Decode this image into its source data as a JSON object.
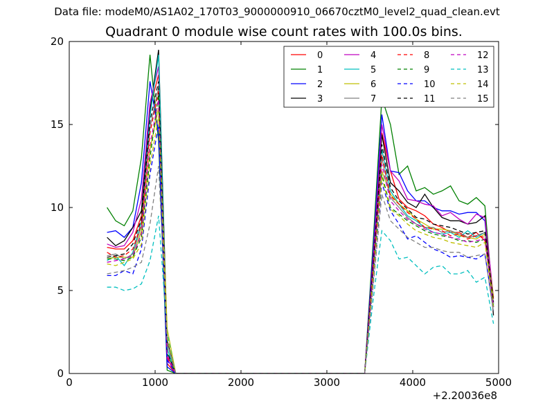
{
  "header": {
    "data_file_label": "Data file: modeM0/AS1A02_170T03_9000000910_06670cztM0_level2_quad_clean.evt"
  },
  "chart_data": {
    "type": "line",
    "title": "Quadrant 0 module wise count rates with 100.0s bins.",
    "xlabel": "",
    "ylabel": "",
    "x_offset_label": "+2.20036e8",
    "xlim": [
      0,
      5000
    ],
    "ylim": [
      0,
      20
    ],
    "xticks": [
      0,
      1000,
      2000,
      3000,
      4000,
      5000
    ],
    "yticks": [
      0,
      5,
      10,
      15,
      20
    ],
    "grid": false,
    "legend_location": "top-right",
    "legend_columns": 4,
    "x": [
      440,
      540,
      640,
      740,
      840,
      940,
      1040,
      1140,
      1240,
      1340,
      1440,
      1540,
      1640,
      1740,
      1840,
      1940,
      2040,
      2140,
      2240,
      2340,
      2440,
      2540,
      2640,
      2740,
      2840,
      2940,
      3040,
      3140,
      3240,
      3340,
      3440,
      3540,
      3640,
      3740,
      3840,
      3940,
      4040,
      4140,
      4240,
      4340,
      4440,
      4540,
      4640,
      4740,
      4840,
      4940
    ],
    "series": [
      {
        "name": "0",
        "color": "#ff0000",
        "dash": "solid",
        "values": [
          7.6,
          7.5,
          7.5,
          8.0,
          9.5,
          16.0,
          18.0,
          0.6,
          0,
          0,
          0,
          0,
          0,
          0,
          0,
          0,
          0,
          0,
          0,
          0,
          0,
          0,
          0,
          0,
          0,
          0,
          0,
          0,
          0,
          0,
          0,
          7.0,
          14.5,
          12.2,
          10.5,
          10.0,
          9.8,
          9.5,
          9.0,
          8.8,
          8.5,
          8.5,
          8.2,
          8.5,
          8.0,
          4.5
        ]
      },
      {
        "name": "1",
        "color": "#008000",
        "dash": "solid",
        "values": [
          10.0,
          9.2,
          8.9,
          9.8,
          13.0,
          19.2,
          14.0,
          0.2,
          0,
          0,
          0,
          0,
          0,
          0,
          0,
          0,
          0,
          0,
          0,
          0,
          0,
          0,
          0,
          0,
          0,
          0,
          0,
          0,
          0,
          0,
          0,
          8.0,
          16.6,
          15.0,
          12.0,
          12.5,
          11.0,
          11.2,
          10.8,
          11.0,
          11.3,
          10.4,
          10.2,
          10.6,
          10.1,
          4.0
        ]
      },
      {
        "name": "2",
        "color": "#0000ff",
        "dash": "solid",
        "values": [
          8.5,
          8.6,
          8.2,
          8.8,
          11.5,
          17.6,
          14.5,
          0.4,
          0,
          0,
          0,
          0,
          0,
          0,
          0,
          0,
          0,
          0,
          0,
          0,
          0,
          0,
          0,
          0,
          0,
          0,
          0,
          0,
          0,
          0,
          0,
          7.5,
          15.6,
          12.2,
          12.1,
          11.0,
          10.4,
          10.4,
          10.0,
          9.8,
          9.8,
          9.6,
          9.7,
          9.7,
          9.2,
          4.2
        ]
      },
      {
        "name": "3",
        "color": "#000000",
        "dash": "solid",
        "values": [
          8.2,
          7.7,
          8.0,
          8.8,
          9.8,
          15.8,
          19.5,
          2.0,
          0,
          0,
          0,
          0,
          0,
          0,
          0,
          0,
          0,
          0,
          0,
          0,
          0,
          0,
          0,
          0,
          0,
          0,
          0,
          0,
          0,
          0,
          0,
          7.0,
          14.4,
          11.5,
          11.0,
          10.3,
          10.0,
          10.8,
          10.0,
          9.4,
          9.2,
          9.2,
          9.0,
          9.1,
          9.5,
          3.5
        ]
      },
      {
        "name": "4",
        "color": "#bf00bf",
        "dash": "solid",
        "values": [
          7.8,
          7.6,
          7.7,
          8.5,
          10.5,
          16.3,
          18.5,
          0.9,
          0,
          0,
          0,
          0,
          0,
          0,
          0,
          0,
          0,
          0,
          0,
          0,
          0,
          0,
          0,
          0,
          0,
          0,
          0,
          0,
          0,
          0,
          0,
          7.0,
          15.0,
          12.2,
          11.6,
          10.5,
          10.4,
          10.2,
          10.1,
          9.5,
          9.7,
          9.3,
          9.0,
          9.6,
          9.4,
          4.6
        ]
      },
      {
        "name": "5",
        "color": "#00bfbf",
        "dash": "solid",
        "values": [
          6.8,
          7.1,
          6.5,
          7.3,
          9.2,
          15.5,
          19.2,
          1.5,
          0,
          0,
          0,
          0,
          0,
          0,
          0,
          0,
          0,
          0,
          0,
          0,
          0,
          0,
          0,
          0,
          0,
          0,
          0,
          0,
          0,
          0,
          0,
          6.5,
          13.5,
          11.0,
          10.2,
          9.5,
          9.2,
          8.8,
          8.5,
          8.4,
          8.5,
          8.2,
          8.6,
          8.2,
          8.5,
          4.0
        ]
      },
      {
        "name": "6",
        "color": "#bfbf00",
        "dash": "solid",
        "values": [
          6.9,
          7.0,
          7.0,
          7.0,
          8.6,
          13.5,
          16.0,
          2.7,
          0,
          0,
          0,
          0,
          0,
          0,
          0,
          0,
          0,
          0,
          0,
          0,
          0,
          0,
          0,
          0,
          0,
          0,
          0,
          0,
          0,
          0,
          0,
          6.2,
          12.2,
          10.8,
          10.2,
          9.8,
          9.3,
          9.0,
          8.7,
          8.7,
          8.6,
          8.3,
          8.2,
          8.1,
          8.4,
          4.6
        ]
      },
      {
        "name": "7",
        "color": "#808080",
        "dash": "solid",
        "values": [
          7.1,
          7.2,
          6.9,
          7.2,
          8.9,
          14.8,
          17.2,
          1.8,
          0,
          0,
          0,
          0,
          0,
          0,
          0,
          0,
          0,
          0,
          0,
          0,
          0,
          0,
          0,
          0,
          0,
          0,
          0,
          0,
          0,
          0,
          0,
          6.3,
          13.0,
          10.6,
          10.0,
          9.4,
          9.0,
          8.8,
          8.8,
          8.5,
          8.6,
          8.4,
          8.2,
          8.3,
          8.5,
          4.2
        ]
      },
      {
        "name": "8",
        "color": "#ff0000",
        "dash": "dashed",
        "values": [
          7.3,
          7.0,
          7.1,
          7.5,
          9.0,
          14.5,
          17.0,
          1.0,
          0,
          0,
          0,
          0,
          0,
          0,
          0,
          0,
          0,
          0,
          0,
          0,
          0,
          0,
          0,
          0,
          0,
          0,
          0,
          0,
          0,
          0,
          0,
          6.5,
          13.2,
          10.7,
          10.2,
          9.7,
          9.3,
          8.8,
          8.7,
          8.6,
          8.3,
          8.4,
          8.1,
          8.3,
          8.2,
          4.4
        ]
      },
      {
        "name": "9",
        "color": "#008000",
        "dash": "dashed",
        "values": [
          6.9,
          6.9,
          6.8,
          7.0,
          8.2,
          13.0,
          16.8,
          1.2,
          0,
          0,
          0,
          0,
          0,
          0,
          0,
          0,
          0,
          0,
          0,
          0,
          0,
          0,
          0,
          0,
          0,
          0,
          0,
          0,
          0,
          0,
          0,
          6.0,
          12.0,
          10.0,
          9.6,
          9.2,
          8.9,
          8.6,
          8.4,
          8.3,
          8.2,
          8.0,
          8.0,
          7.9,
          8.1,
          4.1
        ]
      },
      {
        "name": "10",
        "color": "#0000ff",
        "dash": "dashed",
        "values": [
          5.9,
          5.9,
          6.2,
          6.0,
          7.5,
          12.0,
          15.0,
          0.8,
          0,
          0,
          0,
          0,
          0,
          0,
          0,
          0,
          0,
          0,
          0,
          0,
          0,
          0,
          0,
          0,
          0,
          0,
          0,
          0,
          0,
          0,
          0,
          5.5,
          11.5,
          9.8,
          9.0,
          8.1,
          8.3,
          7.9,
          7.5,
          7.3,
          7.0,
          7.1,
          7.0,
          6.9,
          7.2,
          3.8
        ]
      },
      {
        "name": "11",
        "color": "#000000",
        "dash": "dashed",
        "values": [
          7.0,
          7.1,
          7.2,
          7.8,
          9.3,
          15.2,
          17.6,
          1.3,
          0,
          0,
          0,
          0,
          0,
          0,
          0,
          0,
          0,
          0,
          0,
          0,
          0,
          0,
          0,
          0,
          0,
          0,
          0,
          0,
          0,
          0,
          0,
          6.6,
          13.8,
          11.2,
          10.4,
          9.9,
          9.4,
          9.3,
          9.0,
          8.9,
          8.8,
          8.6,
          8.4,
          8.5,
          8.6,
          4.3
        ]
      },
      {
        "name": "12",
        "color": "#bf00bf",
        "dash": "dashed",
        "values": [
          6.7,
          6.8,
          6.9,
          7.1,
          8.4,
          13.8,
          16.5,
          1.1,
          0,
          0,
          0,
          0,
          0,
          0,
          0,
          0,
          0,
          0,
          0,
          0,
          0,
          0,
          0,
          0,
          0,
          0,
          0,
          0,
          0,
          0,
          0,
          6.1,
          12.6,
          10.4,
          9.8,
          9.3,
          9.0,
          8.7,
          8.5,
          8.4,
          8.2,
          8.1,
          7.9,
          8.0,
          8.1,
          4.0
        ]
      },
      {
        "name": "13",
        "color": "#00bfbf",
        "dash": "dashed",
        "values": [
          5.2,
          5.2,
          5.0,
          5.1,
          5.4,
          6.8,
          9.5,
          2.4,
          0,
          0,
          0,
          0,
          0,
          0,
          0,
          0,
          0,
          0,
          0,
          0,
          0,
          0,
          0,
          0,
          0,
          0,
          0,
          0,
          0,
          0,
          0,
          4.5,
          8.6,
          8.0,
          6.9,
          7.0,
          6.5,
          6.0,
          6.4,
          6.5,
          6.0,
          6.0,
          6.2,
          5.5,
          5.8,
          3.0
        ]
      },
      {
        "name": "14",
        "color": "#bfbf00",
        "dash": "dashed",
        "values": [
          6.6,
          6.5,
          6.7,
          6.9,
          7.8,
          12.5,
          15.5,
          2.2,
          0,
          0,
          0,
          0,
          0,
          0,
          0,
          0,
          0,
          0,
          0,
          0,
          0,
          0,
          0,
          0,
          0,
          0,
          0,
          0,
          0,
          0,
          0,
          5.8,
          11.8,
          9.9,
          9.5,
          9.0,
          8.6,
          8.4,
          8.2,
          8.1,
          7.9,
          7.8,
          7.7,
          7.6,
          7.9,
          3.9
        ]
      },
      {
        "name": "15",
        "color": "#808080",
        "dash": "dashed",
        "values": [
          6.0,
          6.1,
          6.2,
          6.4,
          6.7,
          9.0,
          12.5,
          1.9,
          0,
          0,
          0,
          0,
          0,
          0,
          0,
          0,
          0,
          0,
          0,
          0,
          0,
          0,
          0,
          0,
          0,
          0,
          0,
          0,
          0,
          0,
          0,
          5.3,
          10.8,
          9.2,
          8.7,
          8.2,
          7.9,
          7.6,
          7.6,
          7.4,
          7.3,
          7.3,
          7.0,
          7.1,
          7.2,
          3.7
        ]
      }
    ]
  }
}
